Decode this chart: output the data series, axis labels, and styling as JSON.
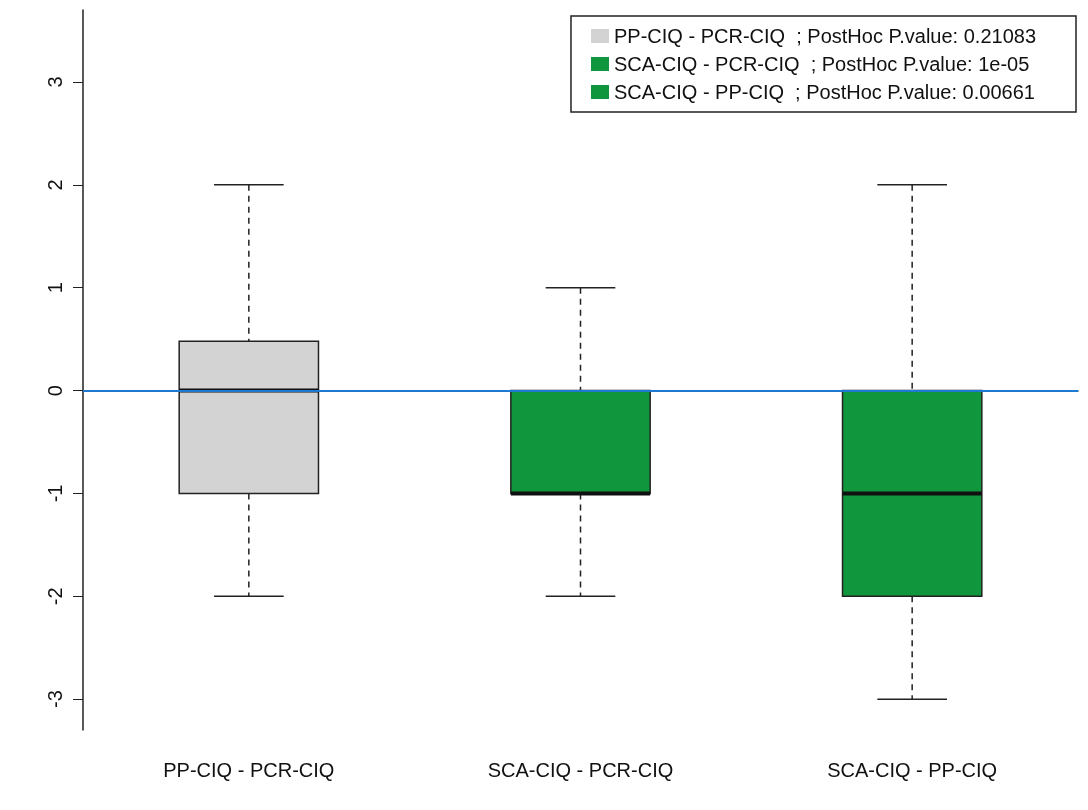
{
  "chart_data": {
    "type": "box",
    "categories": [
      "PP-CIQ - PCR-CIQ",
      "SCA-CIQ - PCR-CIQ",
      "SCA-CIQ - PP-CIQ"
    ],
    "series": [
      {
        "name": "PP-CIQ - PCR-CIQ  ; PostHoc P.value: 0.21083",
        "color": "#d3d3d3",
        "boxes": [
          {
            "low": -2,
            "q1": -1,
            "median": 0,
            "q3": 0.48,
            "high": 2
          },
          null,
          null
        ]
      },
      {
        "name": "SCA-CIQ - PCR-CIQ  ; PostHoc P.value: 1e-05",
        "color": "#10963c",
        "boxes": [
          null,
          {
            "low": -2,
            "q1": -1,
            "median": -1,
            "q3": 0,
            "high": 1
          },
          null
        ]
      },
      {
        "name": "SCA-CIQ - PP-CIQ  ; PostHoc P.value: 0.00661",
        "color": "#10963c",
        "boxes": [
          null,
          null,
          {
            "low": -3,
            "q1": -2,
            "median": -1,
            "q3": 0,
            "high": 2
          }
        ]
      }
    ],
    "ylim": [
      -3.3,
      3.7
    ],
    "yticks": [
      -3,
      -2,
      -1,
      0,
      1,
      2,
      3
    ],
    "grid": false,
    "legend": "top right",
    "ref_lines": [
      {
        "axis": "y",
        "value": 0,
        "color": "#1f78d1"
      }
    ]
  }
}
